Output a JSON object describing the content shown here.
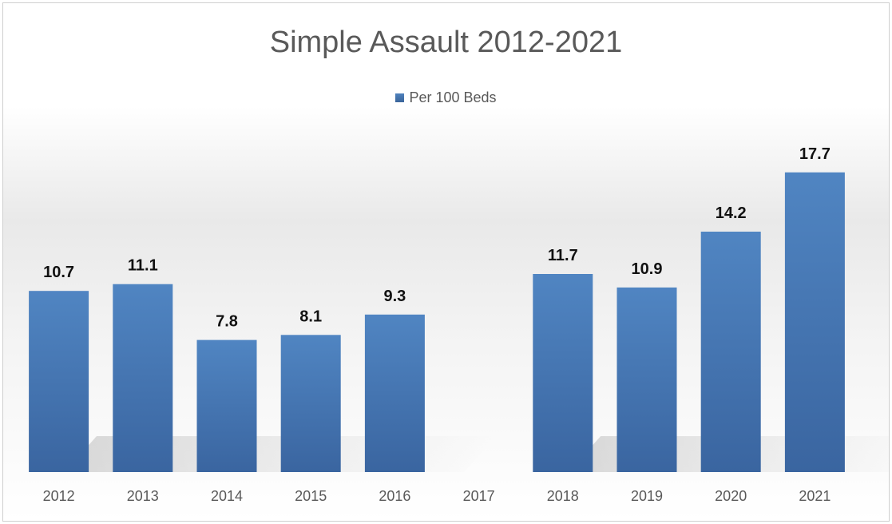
{
  "chart_data": {
    "type": "bar",
    "title": "Simple Assault 2012-2021",
    "categories": [
      "2012",
      "2013",
      "2014",
      "2015",
      "2016",
      "2017",
      "2018",
      "2019",
      "2020",
      "2021"
    ],
    "series": [
      {
        "name": "Per 100 Beds",
        "values": [
          10.7,
          11.1,
          7.8,
          8.1,
          9.3,
          null,
          11.7,
          10.9,
          14.2,
          17.7
        ],
        "color": "#4a78b3"
      }
    ],
    "data_labels": [
      "10.7",
      "11.1",
      "7.8",
      "8.1",
      "9.3",
      "",
      "11.7",
      "10.9",
      "14.2",
      "17.7"
    ],
    "xlabel": "",
    "ylabel": "",
    "ylim": [
      0,
      20
    ],
    "grid": false,
    "legend_position": "top"
  }
}
